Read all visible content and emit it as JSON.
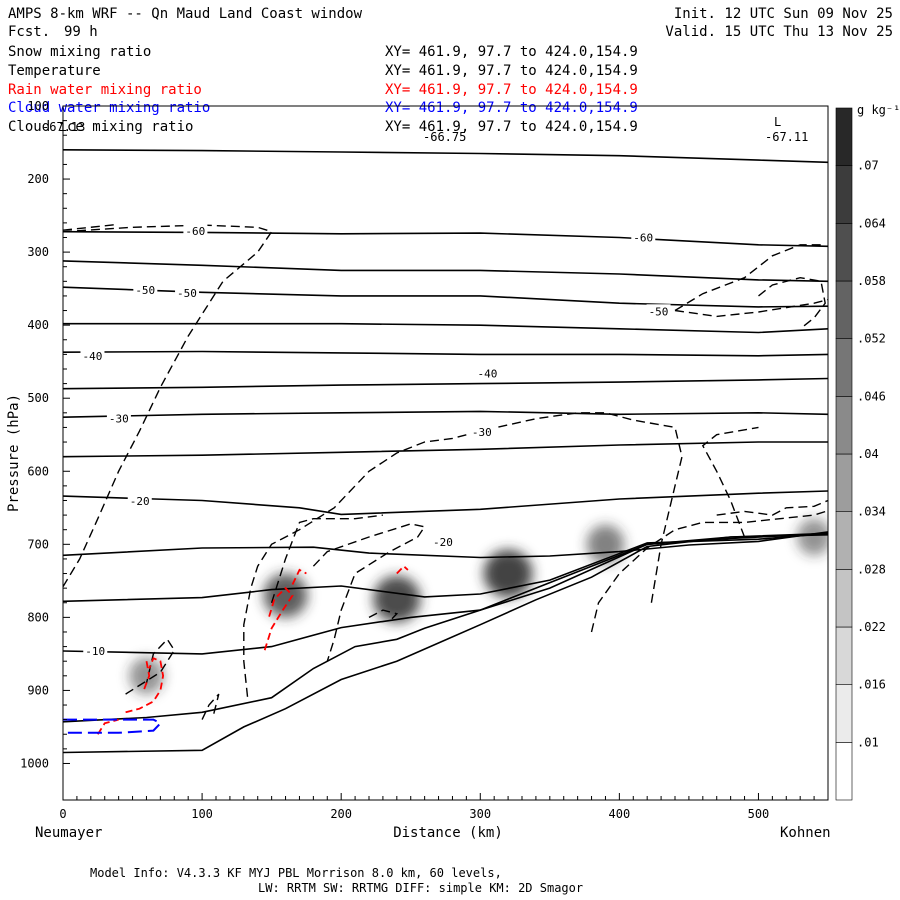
{
  "header": {
    "title": "AMPS 8-km WRF -- Qn Maud Land Coast window",
    "fcst_label": "Fcst.",
    "fcst_value": "99 h",
    "init": "Init. 12 UTC Sun 09 Nov 25",
    "valid": "Valid. 15 UTC Thu 13 Nov 25"
  },
  "fields": [
    {
      "name": "Snow mixing ratio",
      "xy": "XY= 461.9, 97.7 to 424.0,154.9",
      "color": "#000000"
    },
    {
      "name": "Temperature",
      "xy": "XY= 461.9, 97.7 to 424.0,154.9",
      "color": "#000000"
    },
    {
      "name": "Rain water mixing ratio",
      "xy": "XY= 461.9, 97.7 to 424.0,154.9",
      "color": "#ff0000"
    },
    {
      "name": "Cloud water mixing ratio",
      "xy": "XY= 461.9, 97.7 to 424.0,154.9",
      "color": "#0000ff"
    },
    {
      "name": "Cloud ice mixing ratio",
      "xy": "XY= 461.9, 97.7 to 424.0,154.9",
      "color": "#000000"
    }
  ],
  "annotations": {
    "low_left_value": "-66.75",
    "low_right_letter": "L",
    "low_right_value": "-67.11",
    "overlap_value": "-67.13"
  },
  "footer": {
    "line1": "Model Info: V4.3.3   KF      MYJ PBL  Morrison            8.0 km,  60 levels,",
    "line2": "LW: RRTM SW: RRTMG   DIFF: simple KM: 2D Smagor"
  },
  "colors": {
    "snow_shade": "#303030",
    "rain": "#ff0000",
    "cloud_water": "#0000ff",
    "contour": "#000000"
  },
  "chart_data": {
    "type": "cross-section",
    "title": "AMPS 8-km WRF -- Qn Maud Land Coast window",
    "xlabel": "Distance (km)",
    "ylabel": "Pressure (hPa)",
    "xlim": [
      0,
      550
    ],
    "ylim": [
      1050,
      100
    ],
    "xticks": [
      0,
      100,
      200,
      300,
      400,
      500
    ],
    "xtick_labels": [
      "0",
      "100",
      "200",
      "300",
      "400",
      "500"
    ],
    "yticks": [
      100,
      200,
      300,
      400,
      500,
      600,
      700,
      800,
      900,
      1000
    ],
    "ytick_labels": [
      "100",
      "200",
      "300",
      "400",
      "500",
      "600",
      "700",
      "800",
      "900",
      "1000"
    ],
    "left_endpoint": "Neumayer",
    "right_endpoint": "Kohnen",
    "colorbar": {
      "units": "g kg⁻¹",
      "levels": [
        ".01",
        ".016",
        ".022",
        ".028",
        ".034",
        ".04",
        ".046",
        ".052",
        ".058",
        ".064",
        ".07"
      ]
    },
    "temperature_contour_labels": [
      {
        "x": 88,
        "p": 271,
        "text": "-60"
      },
      {
        "x": 410,
        "p": 280,
        "text": "-60"
      },
      {
        "x": 52,
        "p": 352,
        "text": "-50"
      },
      {
        "x": 82,
        "p": 356,
        "text": "-50"
      },
      {
        "x": 421,
        "p": 381,
        "text": "-50"
      },
      {
        "x": 14,
        "p": 442,
        "text": "-40"
      },
      {
        "x": 298,
        "p": 466,
        "text": "-40"
      },
      {
        "x": 33,
        "p": 528,
        "text": "-30"
      },
      {
        "x": 294,
        "p": 546,
        "text": "-30"
      },
      {
        "x": 48,
        "p": 641,
        "text": "-20"
      },
      {
        "x": 266,
        "p": 697,
        "text": "-20"
      },
      {
        "x": 16,
        "p": 846,
        "text": "-10"
      }
    ],
    "temperature_isotherms": [
      [
        [
          0,
          160
        ],
        [
          100,
          161
        ],
        [
          200,
          163
        ],
        [
          300,
          165
        ],
        [
          400,
          168
        ],
        [
          500,
          174
        ],
        [
          550,
          177
        ]
      ],
      [
        [
          0,
          272
        ],
        [
          100,
          273
        ],
        [
          200,
          275
        ],
        [
          300,
          274
        ],
        [
          400,
          280
        ],
        [
          500,
          290
        ],
        [
          550,
          292
        ]
      ],
      [
        [
          0,
          312
        ],
        [
          100,
          318
        ],
        [
          200,
          325
        ],
        [
          300,
          325
        ],
        [
          400,
          330
        ],
        [
          500,
          338
        ],
        [
          550,
          340
        ]
      ],
      [
        [
          0,
          348
        ],
        [
          100,
          355
        ],
        [
          200,
          360
        ],
        [
          300,
          360
        ],
        [
          400,
          370
        ],
        [
          500,
          375
        ],
        [
          550,
          374
        ]
      ],
      [
        [
          0,
          398
        ],
        [
          100,
          398
        ],
        [
          200,
          398
        ],
        [
          300,
          400
        ],
        [
          400,
          405
        ],
        [
          500,
          410
        ],
        [
          550,
          405
        ]
      ],
      [
        [
          0,
          437
        ],
        [
          100,
          436
        ],
        [
          200,
          438
        ],
        [
          300,
          440
        ],
        [
          400,
          440
        ],
        [
          500,
          442
        ],
        [
          550,
          440
        ]
      ],
      [
        [
          0,
          487
        ],
        [
          100,
          485
        ],
        [
          200,
          482
        ],
        [
          300,
          480
        ],
        [
          400,
          478
        ],
        [
          500,
          475
        ],
        [
          550,
          473
        ]
      ],
      [
        [
          0,
          526
        ],
        [
          100,
          522
        ],
        [
          200,
          520
        ],
        [
          300,
          518
        ],
        [
          400,
          522
        ],
        [
          500,
          520
        ],
        [
          550,
          522
        ]
      ],
      [
        [
          0,
          580
        ],
        [
          100,
          578
        ],
        [
          200,
          574
        ],
        [
          300,
          570
        ],
        [
          400,
          564
        ],
        [
          500,
          560
        ],
        [
          550,
          560
        ]
      ],
      [
        [
          0,
          634
        ],
        [
          100,
          640
        ],
        [
          170,
          650
        ],
        [
          200,
          659
        ],
        [
          300,
          652
        ],
        [
          400,
          638
        ],
        [
          500,
          630
        ],
        [
          550,
          627
        ]
      ],
      [
        [
          0,
          715
        ],
        [
          100,
          705
        ],
        [
          180,
          704
        ],
        [
          220,
          712
        ],
        [
          300,
          718
        ],
        [
          350,
          716
        ],
        [
          400,
          710
        ],
        [
          450,
          701
        ],
        [
          500,
          696
        ],
        [
          550,
          683
        ]
      ],
      [
        [
          0,
          778
        ],
        [
          100,
          773
        ],
        [
          150,
          762
        ],
        [
          200,
          757
        ],
        [
          260,
          772
        ],
        [
          300,
          768
        ],
        [
          350,
          749
        ],
        [
          420,
          698
        ],
        [
          500,
          693
        ],
        [
          550,
          685
        ]
      ],
      [
        [
          0,
          846
        ],
        [
          100,
          850
        ],
        [
          150,
          840
        ],
        [
          200,
          814
        ],
        [
          250,
          800
        ],
        [
          300,
          790
        ],
        [
          350,
          760
        ],
        [
          420,
          700
        ],
        [
          480,
          690
        ],
        [
          550,
          685
        ]
      ],
      [
        [
          0,
          943
        ],
        [
          60,
          937
        ],
        [
          100,
          930
        ],
        [
          150,
          910
        ],
        [
          180,
          870
        ],
        [
          210,
          840
        ],
        [
          240,
          830
        ],
        [
          260,
          815
        ],
        [
          300,
          790
        ],
        [
          340,
          760
        ],
        [
          380,
          730
        ],
        [
          420,
          700
        ],
        [
          480,
          692
        ],
        [
          550,
          685
        ]
      ],
      [
        [
          0,
          985
        ],
        [
          100,
          982
        ],
        [
          130,
          950
        ],
        [
          160,
          925
        ],
        [
          200,
          885
        ],
        [
          240,
          860
        ],
        [
          300,
          810
        ],
        [
          340,
          776
        ],
        [
          380,
          745
        ],
        [
          420,
          703
        ],
        [
          480,
          690
        ],
        [
          550,
          687
        ]
      ]
    ],
    "ice_contours_dashed": [
      [
        [
          0,
          272
        ],
        [
          50,
          266
        ],
        [
          100,
          263
        ],
        [
          140,
          266
        ],
        [
          150,
          272
        ],
        [
          140,
          300
        ],
        [
          115,
          340
        ],
        [
          90,
          415
        ],
        [
          70,
          485
        ],
        [
          55,
          545
        ],
        [
          40,
          600
        ],
        [
          25,
          665
        ],
        [
          12,
          720
        ],
        [
          0,
          758
        ]
      ],
      [
        [
          0,
          270
        ],
        [
          40,
          262
        ]
      ],
      [
        [
          440,
          380
        ],
        [
          460,
          357
        ],
        [
          490,
          335
        ],
        [
          510,
          305
        ],
        [
          530,
          290
        ],
        [
          545,
          290
        ]
      ],
      [
        [
          440,
          380
        ],
        [
          470,
          388
        ],
        [
          500,
          382
        ],
        [
          540,
          370
        ],
        [
          550,
          365
        ]
      ],
      [
        [
          500,
          360
        ],
        [
          510,
          345
        ],
        [
          530,
          335
        ],
        [
          545,
          340
        ],
        [
          548,
          370
        ],
        [
          540,
          390
        ],
        [
          530,
          405
        ]
      ],
      [
        [
          423,
          780
        ],
        [
          430,
          700
        ],
        [
          440,
          620
        ],
        [
          445,
          580
        ],
        [
          440,
          540
        ],
        [
          410,
          530
        ],
        [
          390,
          520
        ],
        [
          370,
          520
        ],
        [
          340,
          528
        ],
        [
          300,
          545
        ],
        [
          280,
          555
        ],
        [
          260,
          560
        ],
        [
          240,
          575
        ],
        [
          220,
          600
        ],
        [
          195,
          650
        ],
        [
          170,
          680
        ],
        [
          150,
          700
        ],
        [
          140,
          730
        ],
        [
          135,
          760
        ],
        [
          130,
          810
        ],
        [
          130,
          860
        ],
        [
          133,
          915
        ]
      ],
      [
        [
          180,
          730
        ],
        [
          190,
          710
        ],
        [
          220,
          690
        ],
        [
          250,
          672
        ],
        [
          260,
          676
        ],
        [
          255,
          690
        ],
        [
          235,
          710
        ],
        [
          210,
          740
        ],
        [
          200,
          790
        ],
        [
          195,
          830
        ],
        [
          190,
          860
        ]
      ],
      [
        [
          150,
          780
        ],
        [
          160,
          720
        ],
        [
          170,
          670
        ],
        [
          180,
          665
        ],
        [
          210,
          665
        ],
        [
          230,
          660
        ]
      ],
      [
        [
          490,
          690
        ],
        [
          480,
          640
        ],
        [
          470,
          600
        ],
        [
          460,
          565
        ],
        [
          470,
          550
        ],
        [
          500,
          540
        ]
      ],
      [
        [
          470,
          660
        ],
        [
          490,
          655
        ],
        [
          510,
          660
        ],
        [
          520,
          650
        ],
        [
          540,
          648
        ],
        [
          550,
          640
        ]
      ],
      [
        [
          380,
          820
        ],
        [
          385,
          780
        ],
        [
          400,
          740
        ],
        [
          420,
          705
        ],
        [
          440,
          680
        ],
        [
          460,
          670
        ],
        [
          490,
          670
        ],
        [
          520,
          664
        ],
        [
          540,
          660
        ],
        [
          550,
          654
        ]
      ],
      [
        [
          45,
          905
        ],
        [
          70,
          875
        ],
        [
          80,
          845
        ],
        [
          75,
          830
        ],
        [
          65,
          850
        ],
        [
          60,
          890
        ]
      ],
      [
        [
          100,
          940
        ],
        [
          105,
          920
        ],
        [
          112,
          905
        ],
        [
          108,
          935
        ]
      ],
      [
        [
          220,
          800
        ],
        [
          230,
          790
        ],
        [
          240,
          795
        ],
        [
          235,
          805
        ]
      ]
    ],
    "rain_contours": [
      [
        [
          45,
          930
        ],
        [
          55,
          925
        ],
        [
          65,
          915
        ],
        [
          70,
          900
        ],
        [
          72,
          880
        ],
        [
          70,
          860
        ],
        [
          65,
          856
        ],
        [
          62,
          870
        ]
      ],
      [
        [
          60,
          860
        ],
        [
          62,
          880
        ],
        [
          58,
          900
        ]
      ],
      [
        [
          25,
          960
        ],
        [
          30,
          945
        ],
        [
          40,
          940
        ]
      ],
      [
        [
          145,
          845
        ],
        [
          150,
          815
        ],
        [
          158,
          790
        ],
        [
          165,
          770
        ],
        [
          160,
          760
        ],
        [
          152,
          775
        ],
        [
          148,
          800
        ]
      ],
      [
        [
          165,
          755
        ],
        [
          170,
          735
        ],
        [
          175,
          740
        ]
      ],
      [
        [
          240,
          740
        ],
        [
          245,
          730
        ],
        [
          248,
          735
        ]
      ]
    ],
    "cloud_water_contours": [
      [
        [
          0,
          940
        ],
        [
          40,
          940
        ],
        [
          65,
          940
        ],
        [
          70,
          945
        ],
        [
          65,
          955
        ],
        [
          40,
          958
        ],
        [
          0,
          958
        ]
      ]
    ],
    "snow_maxima": [
      {
        "x": 60,
        "p": 880,
        "value": 0.02
      },
      {
        "x": 160,
        "p": 770,
        "value": 0.05
      },
      {
        "x": 240,
        "p": 775,
        "value": 0.06
      },
      {
        "x": 320,
        "p": 740,
        "value": 0.065
      },
      {
        "x": 390,
        "p": 700,
        "value": 0.03
      },
      {
        "x": 540,
        "p": 690,
        "value": 0.02
      }
    ]
  }
}
